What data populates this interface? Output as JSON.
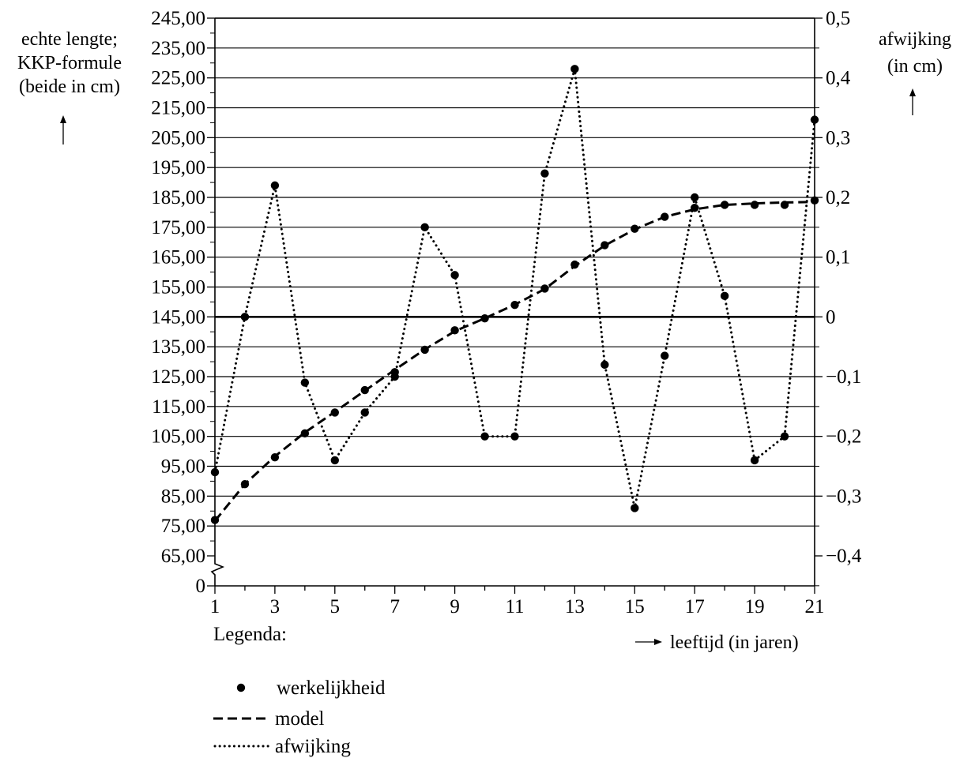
{
  "chart_data": {
    "type": "line",
    "x": [
      1,
      2,
      3,
      4,
      5,
      6,
      7,
      8,
      9,
      10,
      11,
      12,
      13,
      14,
      15,
      16,
      17,
      18,
      19,
      20,
      21
    ],
    "x_ticks": [
      1,
      3,
      5,
      7,
      9,
      11,
      13,
      15,
      17,
      19,
      21
    ],
    "x_tick_labels": [
      "1",
      "3",
      "5",
      "7",
      "9",
      "11",
      "13",
      "15",
      "17",
      "19",
      "21"
    ],
    "xlim": [
      1,
      21
    ],
    "xlabel": "leeftijd (in jaren)",
    "y_left": {
      "label_lines": [
        "echte lengte;",
        "KKP-formule",
        "(beide in cm)"
      ],
      "ylim": [
        65,
        245
      ],
      "axis_break": true,
      "break_bottom_label": "0",
      "ticks": [
        65,
        75,
        85,
        95,
        105,
        115,
        125,
        135,
        145,
        155,
        165,
        175,
        185,
        195,
        205,
        215,
        225,
        235,
        245
      ],
      "tick_labels": [
        "65,00",
        "75,00",
        "85,00",
        "95,00",
        "105,00",
        "115,00",
        "125,00",
        "135,00",
        "145,00",
        "155,00",
        "165,00",
        "175,00",
        "185,00",
        "195,00",
        "205,00",
        "215,00",
        "225,00",
        "235,00",
        "245,00"
      ]
    },
    "y_right": {
      "label_lines": [
        "afwijking",
        "(in cm)"
      ],
      "ylim": [
        -0.45,
        0.5
      ],
      "ticks": [
        -0.4,
        -0.3,
        -0.2,
        -0.1,
        0,
        0.1,
        0.2,
        0.3,
        0.4,
        0.5
      ],
      "tick_labels": [
        "−0,4",
        "−0,3",
        "−0,2",
        "−0,1",
        "0",
        "0,1",
        "0,2",
        "0,3",
        "0,4",
        "0,5"
      ]
    },
    "grid": true,
    "series": [
      {
        "name": "werkelijkheid",
        "axis": "left",
        "style": "points",
        "values": [
          77.0,
          89.0,
          98.0,
          106.0,
          113.0,
          120.5,
          126.5,
          134.0,
          140.5,
          144.5,
          149.0,
          154.5,
          162.5,
          169.0,
          174.5,
          178.5,
          181.5,
          182.5,
          182.5,
          182.5,
          184.0
        ]
      },
      {
        "name": "model",
        "axis": "left",
        "style": "dashed",
        "values": [
          76.7,
          89.0,
          98.3,
          106.3,
          113.2,
          120.3,
          127.3,
          134.1,
          140.2,
          144.5,
          149.1,
          154.3,
          162.0,
          168.9,
          174.3,
          178.5,
          181.0,
          182.5,
          183.0,
          183.3,
          183.5
        ]
      },
      {
        "name": "afwijking",
        "axis": "right",
        "style": "dotted",
        "values": [
          -0.26,
          0.0,
          0.22,
          -0.11,
          -0.24,
          -0.16,
          -0.1,
          0.15,
          0.07,
          -0.2,
          -0.2,
          0.24,
          0.415,
          -0.08,
          -0.32,
          -0.065,
          0.2,
          0.035,
          -0.24,
          -0.2,
          0.33
        ]
      }
    ],
    "legend": {
      "title": "Legenda:",
      "position": "bottom-left",
      "items": [
        "werkelijkheid",
        "model",
        "afwijking"
      ]
    }
  }
}
